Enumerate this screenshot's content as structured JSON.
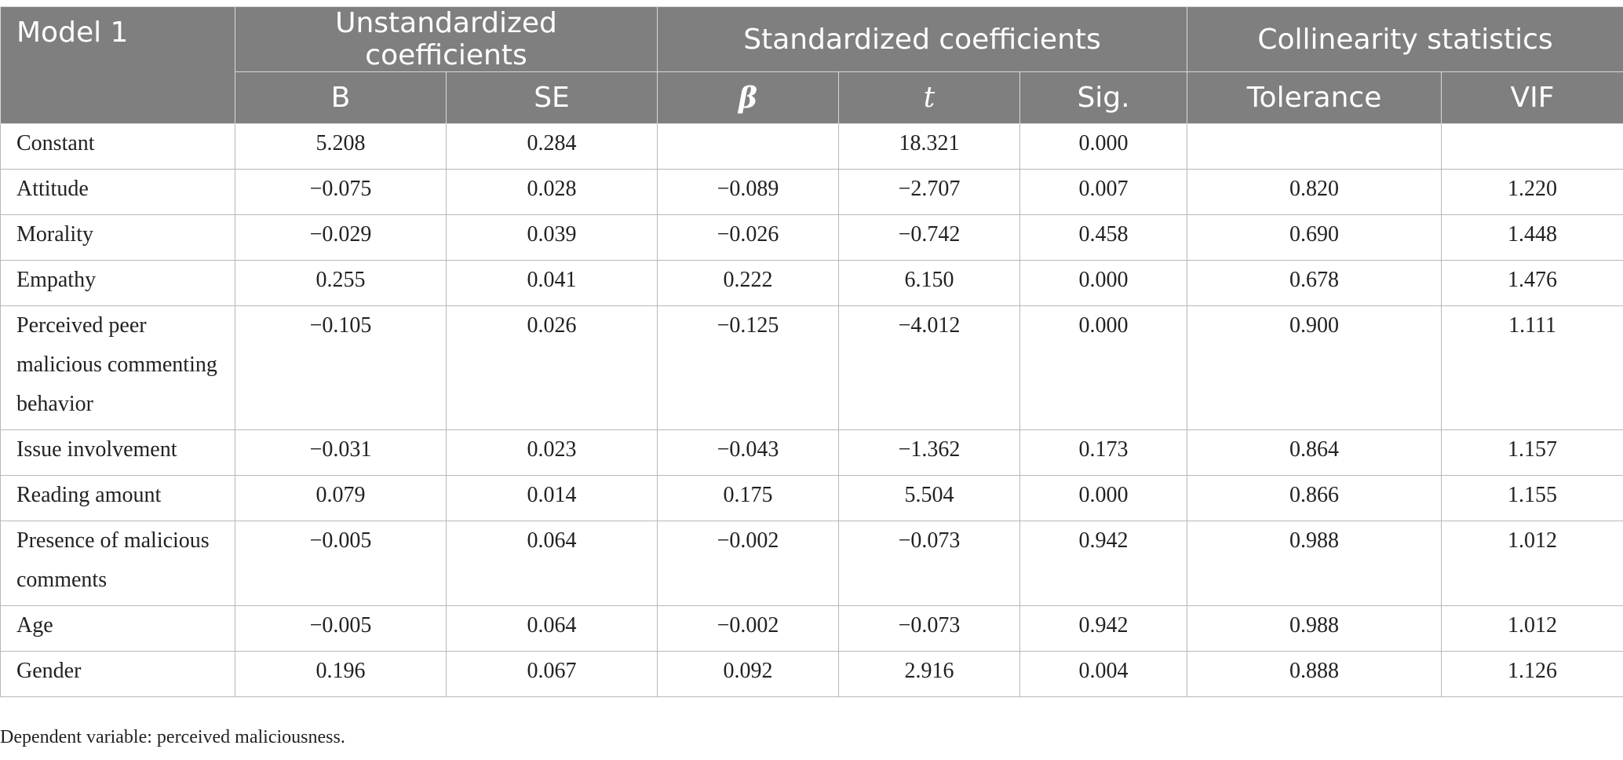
{
  "header": {
    "model": "Model 1",
    "group_unstd": "Unstandardized coefficients",
    "group_std": "Standardized coefficients",
    "group_col": "Collinearity statistics",
    "col_b": "B",
    "col_se": "SE",
    "col_beta": "β",
    "col_t": "t",
    "col_sig": "Sig.",
    "col_tol": "Tolerance",
    "col_vif": "VIF"
  },
  "rows": [
    {
      "label": "Constant",
      "b": "5.208",
      "se": "0.284",
      "beta": "",
      "t": "18.321",
      "sig": "0.000",
      "tol": "",
      "vif": ""
    },
    {
      "label": "Attitude",
      "b": "−0.075",
      "se": "0.028",
      "beta": "−0.089",
      "t": "−2.707",
      "sig": "0.007",
      "tol": "0.820",
      "vif": "1.220"
    },
    {
      "label": "Morality",
      "b": "−0.029",
      "se": "0.039",
      "beta": "−0.026",
      "t": "−0.742",
      "sig": "0.458",
      "tol": "0.690",
      "vif": "1.448"
    },
    {
      "label": "Empathy",
      "b": "0.255",
      "se": "0.041",
      "beta": "0.222",
      "t": "6.150",
      "sig": "0.000",
      "tol": "0.678",
      "vif": "1.476"
    },
    {
      "label": "Perceived peer malicious commenting behavior",
      "b": "−0.105",
      "se": "0.026",
      "beta": "−0.125",
      "t": "−4.012",
      "sig": "0.000",
      "tol": "0.900",
      "vif": "1.111"
    },
    {
      "label": "Issue involvement",
      "b": "−0.031",
      "se": "0.023",
      "beta": "−0.043",
      "t": "−1.362",
      "sig": "0.173",
      "tol": "0.864",
      "vif": "1.157"
    },
    {
      "label": "Reading amount",
      "b": "0.079",
      "se": "0.014",
      "beta": "0.175",
      "t": "5.504",
      "sig": "0.000",
      "tol": "0.866",
      "vif": "1.155"
    },
    {
      "label": "Presence of malicious comments",
      "b": "−0.005",
      "se": "0.064",
      "beta": "−0.002",
      "t": "−0.073",
      "sig": "0.942",
      "tol": "0.988",
      "vif": "1.012"
    },
    {
      "label": "Age",
      "b": "−0.005",
      "se": "0.064",
      "beta": "−0.002",
      "t": "−0.073",
      "sig": "0.942",
      "tol": "0.988",
      "vif": "1.012"
    },
    {
      "label": "Gender",
      "b": "0.196",
      "se": "0.067",
      "beta": "0.092",
      "t": "2.916",
      "sig": "0.004",
      "tol": "0.888",
      "vif": "1.126"
    }
  ],
  "footnote": "Dependent variable: perceived maliciousness."
}
